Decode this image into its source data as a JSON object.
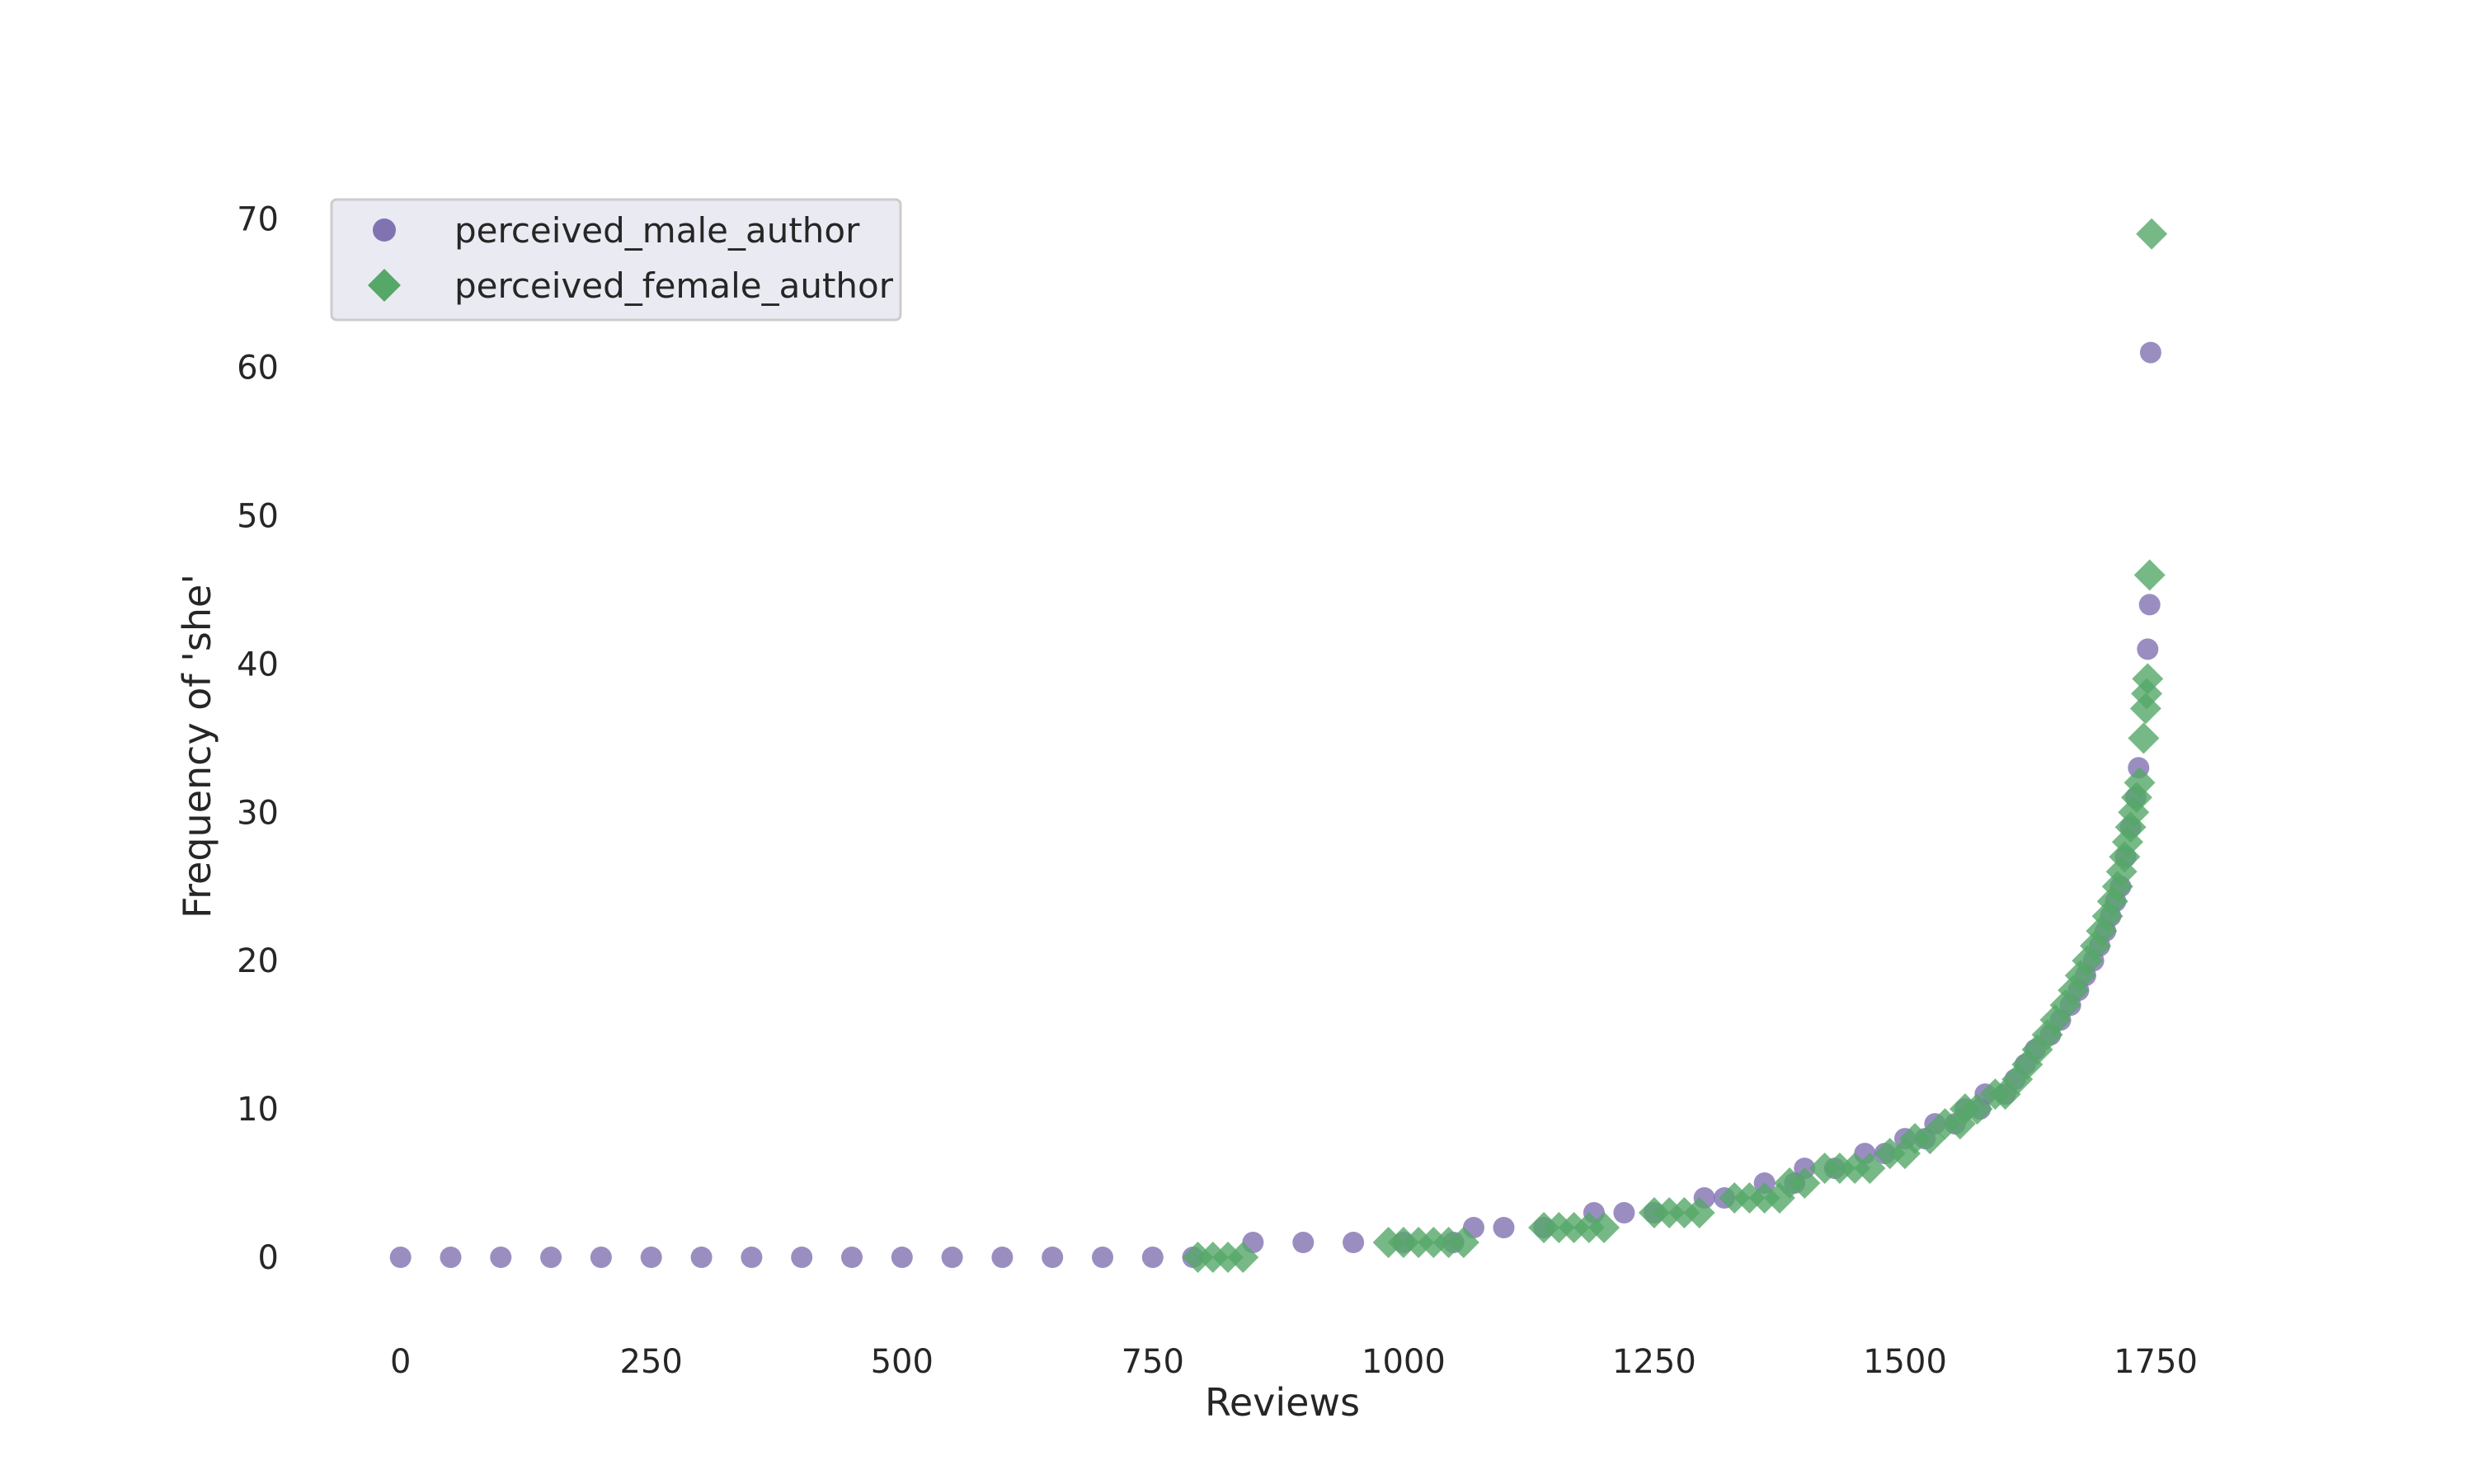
{
  "chart_data": {
    "type": "scatter",
    "title": "",
    "xlabel": "Reviews",
    "ylabel": "Frequency of 'she'",
    "xlim": [
      -40,
      1960
    ],
    "ylim": [
      -5,
      76
    ],
    "xticks": [
      0,
      250,
      500,
      750,
      1000,
      1250,
      1500,
      1750
    ],
    "yticks": [
      0,
      10,
      20,
      30,
      40,
      50,
      60,
      70
    ],
    "grid": false,
    "legend": "top-left",
    "series": [
      {
        "name": "perceived_male_author",
        "marker": "circle",
        "color": "#8172b2",
        "opacity": 0.8,
        "points": [
          [
            0,
            0
          ],
          [
            50,
            0
          ],
          [
            100,
            0
          ],
          [
            150,
            0
          ],
          [
            200,
            0
          ],
          [
            250,
            0
          ],
          [
            300,
            0
          ],
          [
            350,
            0
          ],
          [
            400,
            0
          ],
          [
            450,
            0
          ],
          [
            500,
            0
          ],
          [
            550,
            0
          ],
          [
            600,
            0
          ],
          [
            650,
            0
          ],
          [
            700,
            0
          ],
          [
            750,
            0
          ],
          [
            790,
            0
          ],
          [
            850,
            1
          ],
          [
            900,
            1
          ],
          [
            950,
            1
          ],
          [
            1000,
            1
          ],
          [
            1050,
            1
          ],
          [
            1070,
            2
          ],
          [
            1100,
            2
          ],
          [
            1140,
            2
          ],
          [
            1190,
            3
          ],
          [
            1220,
            3
          ],
          [
            1250,
            3
          ],
          [
            1300,
            4
          ],
          [
            1320,
            4
          ],
          [
            1360,
            5
          ],
          [
            1390,
            5
          ],
          [
            1400,
            6
          ],
          [
            1430,
            6
          ],
          [
            1460,
            7
          ],
          [
            1480,
            7
          ],
          [
            1500,
            8
          ],
          [
            1520,
            8
          ],
          [
            1530,
            9
          ],
          [
            1550,
            9
          ],
          [
            1560,
            10
          ],
          [
            1575,
            10
          ],
          [
            1580,
            11
          ],
          [
            1600,
            11
          ],
          [
            1610,
            12
          ],
          [
            1620,
            13
          ],
          [
            1630,
            14
          ],
          [
            1645,
            15
          ],
          [
            1655,
            16
          ],
          [
            1665,
            17
          ],
          [
            1673,
            18
          ],
          [
            1680,
            19
          ],
          [
            1688,
            20
          ],
          [
            1694,
            21
          ],
          [
            1700,
            22
          ],
          [
            1705,
            23
          ],
          [
            1710,
            24
          ],
          [
            1715,
            25
          ],
          [
            1720,
            27
          ],
          [
            1725,
            29
          ],
          [
            1730,
            31
          ],
          [
            1733,
            33
          ],
          [
            1742,
            41
          ],
          [
            1744,
            44
          ],
          [
            1745,
            61
          ]
        ]
      },
      {
        "name": "perceived_female_author",
        "marker": "diamond",
        "color": "#55a868",
        "opacity": 0.8,
        "points": [
          [
            795,
            0
          ],
          [
            810,
            0
          ],
          [
            825,
            0
          ],
          [
            840,
            0
          ],
          [
            985,
            1
          ],
          [
            1000,
            1
          ],
          [
            1015,
            1
          ],
          [
            1030,
            1
          ],
          [
            1045,
            1
          ],
          [
            1060,
            1
          ],
          [
            1140,
            2
          ],
          [
            1155,
            2
          ],
          [
            1170,
            2
          ],
          [
            1185,
            2
          ],
          [
            1200,
            2
          ],
          [
            1250,
            3
          ],
          [
            1265,
            3
          ],
          [
            1280,
            3
          ],
          [
            1295,
            3
          ],
          [
            1330,
            4
          ],
          [
            1345,
            4
          ],
          [
            1360,
            4
          ],
          [
            1375,
            4
          ],
          [
            1385,
            5
          ],
          [
            1400,
            5
          ],
          [
            1420,
            6
          ],
          [
            1435,
            6
          ],
          [
            1450,
            6
          ],
          [
            1465,
            6
          ],
          [
            1485,
            7
          ],
          [
            1500,
            7
          ],
          [
            1510,
            8
          ],
          [
            1525,
            8
          ],
          [
            1540,
            9
          ],
          [
            1555,
            9
          ],
          [
            1560,
            10
          ],
          [
            1572,
            10
          ],
          [
            1590,
            11
          ],
          [
            1600,
            11
          ],
          [
            1612,
            12
          ],
          [
            1622,
            13
          ],
          [
            1632,
            14
          ],
          [
            1642,
            15
          ],
          [
            1650,
            16
          ],
          [
            1660,
            17
          ],
          [
            1668,
            18
          ],
          [
            1675,
            19
          ],
          [
            1682,
            20
          ],
          [
            1690,
            21
          ],
          [
            1696,
            22
          ],
          [
            1702,
            23
          ],
          [
            1707,
            24
          ],
          [
            1712,
            25
          ],
          [
            1716,
            26
          ],
          [
            1719,
            27
          ],
          [
            1722,
            28
          ],
          [
            1725,
            29
          ],
          [
            1728,
            30
          ],
          [
            1731,
            31
          ],
          [
            1734,
            32
          ],
          [
            1738,
            35
          ],
          [
            1740,
            37
          ],
          [
            1741,
            38
          ],
          [
            1742,
            39
          ],
          [
            1744,
            46
          ],
          [
            1746,
            69
          ]
        ]
      }
    ]
  }
}
